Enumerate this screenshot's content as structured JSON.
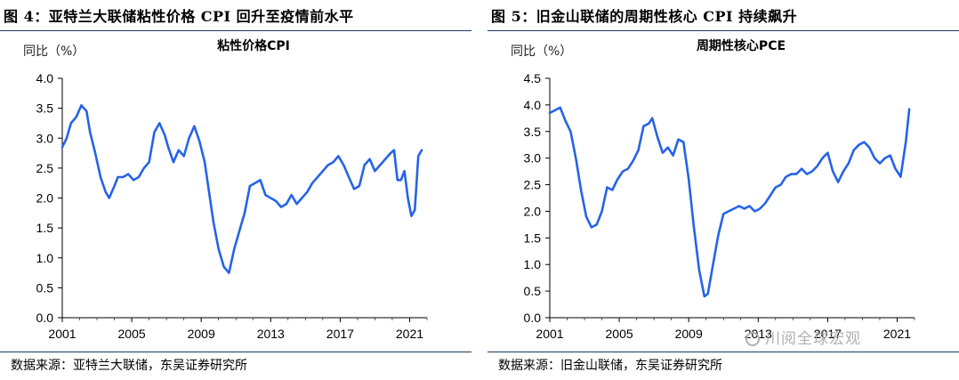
{
  "figures": [
    {
      "title": "图 4：亚特兰大联储粘性价格 CPI 回升至疫情前水平",
      "source": "数据来源：亚特兰大联储，东吴证券研究所"
    },
    {
      "title": "图 5：旧金山联储的周期性核心 CPI 持续飙升",
      "source": "数据来源：旧金山联储，东吴证券研究所"
    }
  ],
  "watermark": {
    "text": "川阅全球宏观",
    "icon": "wechat-icon"
  },
  "chart_data": [
    {
      "type": "line",
      "title": "粘性价格CPI",
      "ylabel": "同比（%）",
      "xlabel": "",
      "xlim": [
        2001,
        2022
      ],
      "ylim": [
        0,
        4
      ],
      "x_ticks": [
        "2001",
        "2005",
        "2009",
        "2013",
        "2017",
        "2021"
      ],
      "y_ticks": [
        "0.0",
        "0.5",
        "1.0",
        "1.5",
        "2.0",
        "2.5",
        "3.0",
        "3.5",
        "4.0"
      ],
      "line_color": "#2563e8",
      "grid": false,
      "series": [
        {
          "x": [
            2001.0,
            2001.25,
            2001.5,
            2001.8,
            2002.1,
            2002.4,
            2002.6,
            2002.9,
            2003.2,
            2003.5,
            2003.7,
            2004.0,
            2004.2,
            2004.5,
            2004.8,
            2005.1,
            2005.4,
            2005.7,
            2006.0,
            2006.3,
            2006.6,
            2006.9,
            2007.1,
            2007.4,
            2007.7,
            2008.0,
            2008.3,
            2008.6,
            2008.9,
            2009.2,
            2009.4,
            2009.7,
            2010.0,
            2010.3,
            2010.6,
            2010.9,
            2011.2,
            2011.5,
            2011.8,
            2012.1,
            2012.4,
            2012.7,
            2013.0,
            2013.3,
            2013.6,
            2013.9,
            2014.2,
            2014.5,
            2014.8,
            2015.1,
            2015.4,
            2015.7,
            2016.0,
            2016.3,
            2016.6,
            2016.9,
            2017.2,
            2017.5,
            2017.8,
            2018.1,
            2018.4,
            2018.7,
            2019.0,
            2019.3,
            2019.6,
            2019.9,
            2020.1,
            2020.3,
            2020.5,
            2020.7,
            2020.9,
            2021.1,
            2021.3,
            2021.5,
            2021.7
          ],
          "values": [
            2.85,
            3.0,
            3.25,
            3.35,
            3.55,
            3.45,
            3.1,
            2.75,
            2.35,
            2.1,
            2.0,
            2.2,
            2.35,
            2.35,
            2.4,
            2.3,
            2.35,
            2.5,
            2.6,
            3.1,
            3.25,
            3.05,
            2.85,
            2.6,
            2.8,
            2.7,
            3.0,
            3.2,
            2.95,
            2.6,
            2.2,
            1.6,
            1.15,
            0.85,
            0.75,
            1.15,
            1.45,
            1.75,
            2.2,
            2.25,
            2.3,
            2.05,
            2.0,
            1.95,
            1.85,
            1.9,
            2.05,
            1.9,
            2.0,
            2.1,
            2.25,
            2.35,
            2.45,
            2.55,
            2.6,
            2.7,
            2.55,
            2.35,
            2.15,
            2.2,
            2.55,
            2.65,
            2.45,
            2.55,
            2.65,
            2.75,
            2.8,
            2.3,
            2.3,
            2.45,
            2.0,
            1.7,
            1.8,
            2.7,
            2.8
          ]
        }
      ]
    },
    {
      "type": "line",
      "title": "周期性核心PCE",
      "ylabel": "同比（%）",
      "xlabel": "",
      "xlim": [
        2001,
        2022
      ],
      "ylim": [
        0,
        4.5
      ],
      "x_ticks": [
        "2001",
        "2005",
        "2009",
        "2013",
        "2017",
        "2021"
      ],
      "y_ticks": [
        "0.0",
        "0.5",
        "1.0",
        "1.5",
        "2.0",
        "2.5",
        "3.0",
        "3.5",
        "4.0",
        "4.5"
      ],
      "line_color": "#2563e8",
      "grid": false,
      "series": [
        {
          "x": [
            2001.0,
            2001.3,
            2001.6,
            2001.9,
            2002.2,
            2002.5,
            2002.8,
            2003.1,
            2003.4,
            2003.7,
            2004.0,
            2004.3,
            2004.6,
            2004.9,
            2005.2,
            2005.5,
            2005.8,
            2006.1,
            2006.4,
            2006.7,
            2006.9,
            2007.2,
            2007.5,
            2007.8,
            2008.1,
            2008.4,
            2008.7,
            2009.0,
            2009.3,
            2009.6,
            2009.9,
            2010.1,
            2010.4,
            2010.7,
            2011.0,
            2011.3,
            2011.6,
            2011.9,
            2012.2,
            2012.5,
            2012.8,
            2013.1,
            2013.4,
            2013.7,
            2014.0,
            2014.3,
            2014.6,
            2014.9,
            2015.2,
            2015.5,
            2015.8,
            2016.1,
            2016.4,
            2016.7,
            2017.0,
            2017.3,
            2017.6,
            2017.9,
            2018.2,
            2018.5,
            2018.8,
            2019.1,
            2019.4,
            2019.7,
            2020.0,
            2020.3,
            2020.6,
            2020.9,
            2021.2,
            2021.5,
            2021.7
          ],
          "values": [
            3.85,
            3.9,
            3.95,
            3.7,
            3.5,
            3.0,
            2.4,
            1.9,
            1.7,
            1.75,
            2.0,
            2.45,
            2.4,
            2.6,
            2.75,
            2.8,
            2.95,
            3.15,
            3.6,
            3.65,
            3.75,
            3.4,
            3.1,
            3.2,
            3.05,
            3.35,
            3.3,
            2.6,
            1.7,
            0.9,
            0.4,
            0.45,
            1.0,
            1.55,
            1.95,
            2.0,
            2.05,
            2.1,
            2.05,
            2.1,
            2.0,
            2.05,
            2.15,
            2.3,
            2.45,
            2.5,
            2.65,
            2.7,
            2.7,
            2.8,
            2.7,
            2.75,
            2.85,
            3.0,
            3.1,
            2.75,
            2.55,
            2.75,
            2.9,
            3.15,
            3.25,
            3.3,
            3.2,
            3.0,
            2.9,
            3.0,
            3.05,
            2.8,
            2.65,
            3.3,
            3.92
          ]
        }
      ]
    }
  ]
}
